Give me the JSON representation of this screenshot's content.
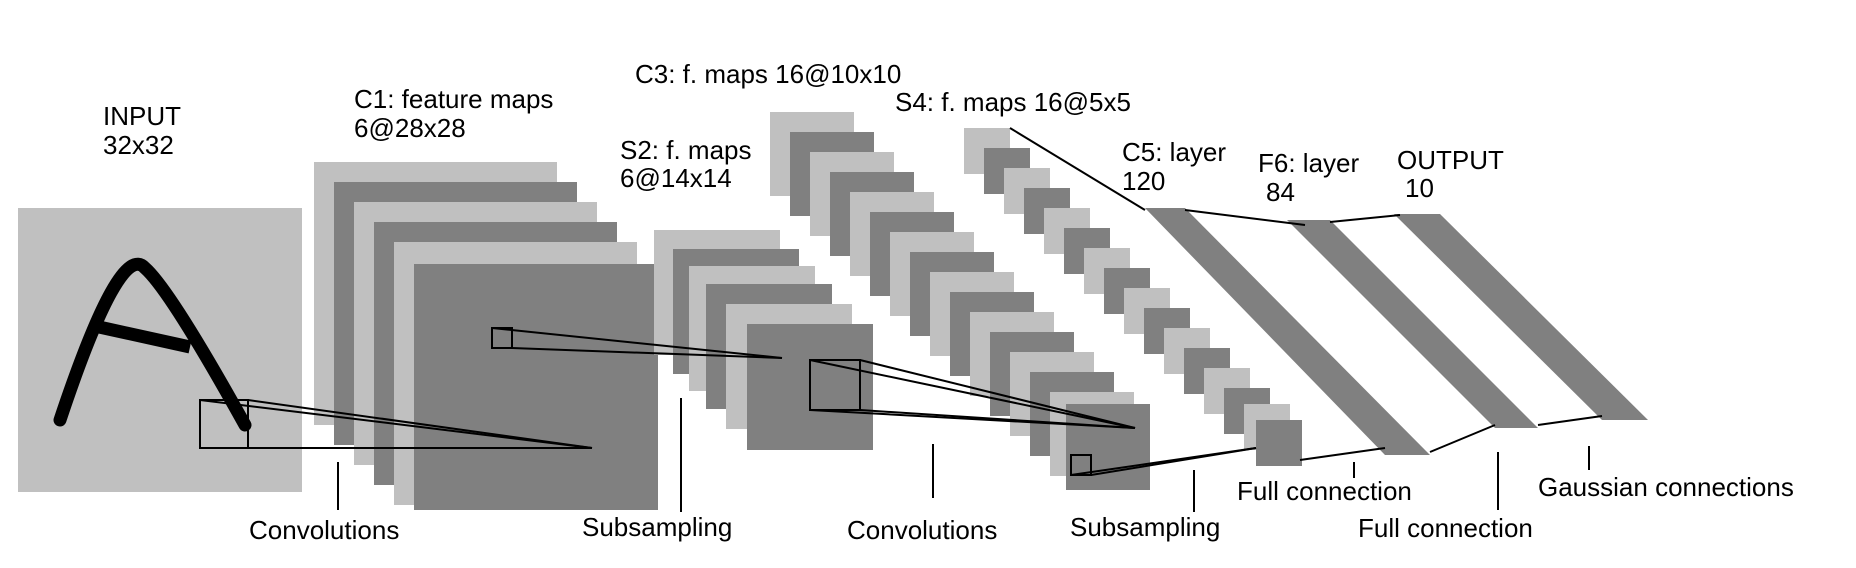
{
  "layers": {
    "input": {
      "name": "INPUT",
      "size": "32x32"
    },
    "c1": {
      "name": "C1: feature maps",
      "size": "6@28x28"
    },
    "s2": {
      "name": "S2: f. maps",
      "size": "6@14x14"
    },
    "c3": {
      "name": "C3: f. maps 16@10x10"
    },
    "s4": {
      "name": "S4: f. maps 16@5x5"
    },
    "c5": {
      "name": "C5: layer",
      "size": "120"
    },
    "f6": {
      "name": "F6: layer",
      "size": "84"
    },
    "output": {
      "name": "OUTPUT",
      "size": "10"
    }
  },
  "operations": {
    "conv1": "Convolutions",
    "sub1": "Subsampling",
    "conv2": "Convolutions",
    "sub2": "Subsampling",
    "full1": "Full connection",
    "full2": "Full connection",
    "gauss": "Gaussian connections"
  },
  "colors": {
    "dark": "#808080",
    "light": "#c0c0c0",
    "ink": "#000000"
  }
}
